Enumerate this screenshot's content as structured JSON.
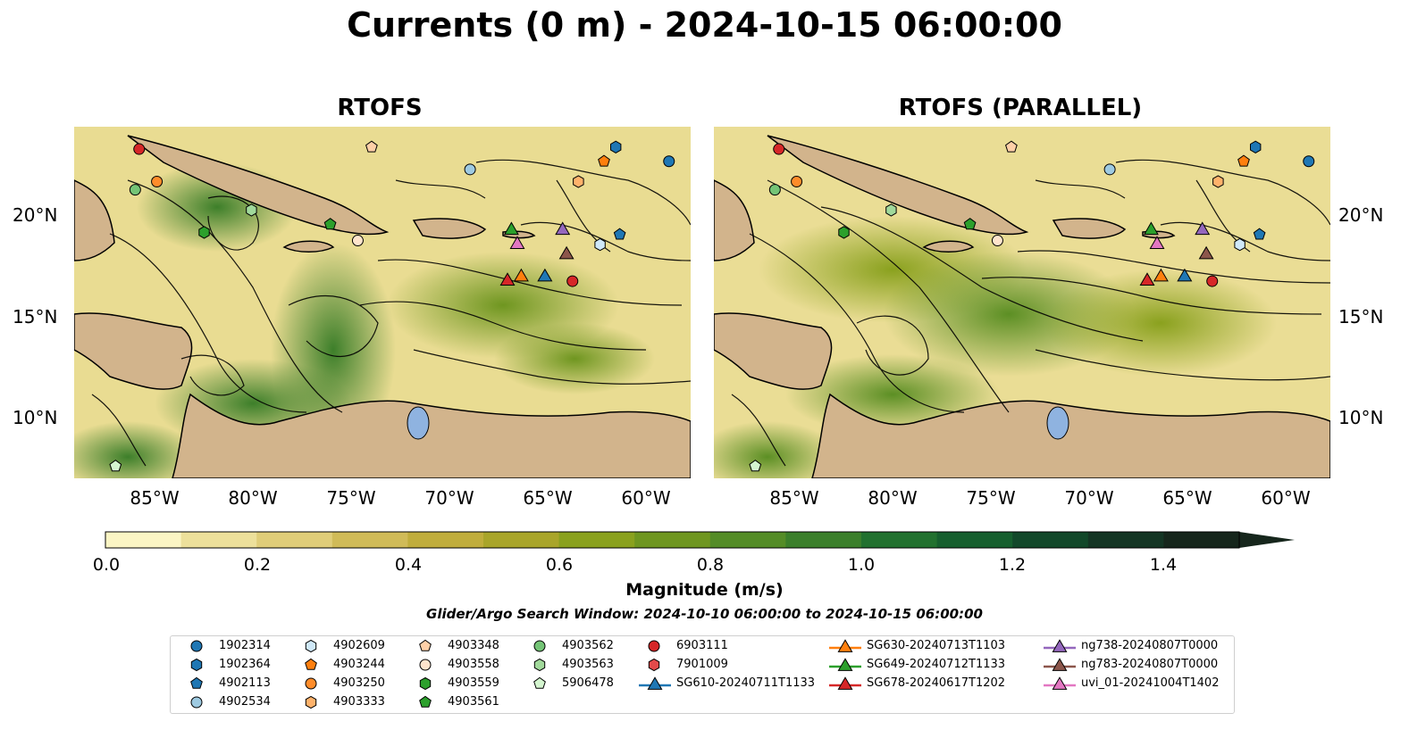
{
  "title": "Currents (0 m) - 2024-10-15 06:00:00",
  "panels": [
    {
      "title": "RTOFS"
    },
    {
      "title": "RTOFS (PARALLEL)"
    }
  ],
  "axes": {
    "lat_ticks": [
      "20°N",
      "15°N",
      "10°N"
    ],
    "lon_ticks": [
      "85°W",
      "80°W",
      "75°W",
      "70°W",
      "65°W",
      "60°W"
    ]
  },
  "colorbar": {
    "label": "Magnitude (m/s)",
    "ticks": [
      "0.0",
      "0.2",
      "0.4",
      "0.6",
      "0.8",
      "1.0",
      "1.2",
      "1.4"
    ],
    "range": [
      0,
      1.5
    ],
    "colors": [
      "#fbf5c4",
      "#ede09b",
      "#e0cd79",
      "#d0bb58",
      "#c0ad3c",
      "#a9a52a",
      "#8aa11e",
      "#6f9620",
      "#548c27",
      "#3b7f2b",
      "#22712f",
      "#165f2e",
      "#12482a",
      "#143524",
      "#16261c"
    ]
  },
  "search_window": "Glider/Argo Search Window: 2024-10-10 06:00:00 to 2024-10-15 06:00:00",
  "land_color": "#d2b48c",
  "legend": [
    {
      "label": "1902314",
      "marker": "circle",
      "color": "#1f77b4"
    },
    {
      "label": "1902364",
      "marker": "hexagon",
      "color": "#1f77b4"
    },
    {
      "label": "4902113",
      "marker": "pentagon",
      "color": "#1f77b4"
    },
    {
      "label": "4902534",
      "marker": "circle",
      "color": "#9ecae1"
    },
    {
      "label": "4902609",
      "marker": "hexagon",
      "color": "#cfe8f8"
    },
    {
      "label": "4903244",
      "marker": "pentagon",
      "color": "#ff7f0e"
    },
    {
      "label": "4903250",
      "marker": "circle",
      "color": "#ff8c2a"
    },
    {
      "label": "4903333",
      "marker": "hexagon",
      "color": "#ffb26b"
    },
    {
      "label": "4903348",
      "marker": "pentagon",
      "color": "#ffd0a8"
    },
    {
      "label": "4903558",
      "marker": "circle",
      "color": "#ffe4cc"
    },
    {
      "label": "4903559",
      "marker": "hexagon",
      "color": "#2ca02c"
    },
    {
      "label": "4903561",
      "marker": "pentagon",
      "color": "#2ca02c"
    },
    {
      "label": "4903562",
      "marker": "circle",
      "color": "#74c476"
    },
    {
      "label": "4903563",
      "marker": "hexagon",
      "color": "#a1d99b"
    },
    {
      "label": "5906478",
      "marker": "pentagon",
      "color": "#d4f5cf"
    },
    {
      "label": "6903111",
      "marker": "circle",
      "color": "#d62728"
    },
    {
      "label": "7901009",
      "marker": "hexagon",
      "color": "#e34a4a"
    },
    {
      "label": "SG610-20240711T1133",
      "marker": "triangle-line",
      "color": "#1f77b4"
    },
    {
      "label": "SG630-20240713T1103",
      "marker": "triangle-line",
      "color": "#ff7f0e"
    },
    {
      "label": "SG649-20240712T1133",
      "marker": "triangle-line",
      "color": "#2ca02c"
    },
    {
      "label": "SG678-20240617T1202",
      "marker": "triangle-line",
      "color": "#d62728"
    },
    {
      "label": "ng738-20240807T0000",
      "marker": "triangle-line",
      "color": "#9467bd"
    },
    {
      "label": "ng783-20240807T0000",
      "marker": "triangle-line",
      "color": "#8c564b"
    },
    {
      "label": "uvi_01-20241004T1402",
      "marker": "triangle-line",
      "color": "#e377c2"
    }
  ],
  "observations": [
    {
      "id": "6903111",
      "lon": -85.9,
      "lat": 23.2
    },
    {
      "id": "4903562",
      "lon": -86.1,
      "lat": 21.2
    },
    {
      "id": "4903250",
      "lon": -85.0,
      "lat": 21.6
    },
    {
      "id": "4903563",
      "lon": -80.2,
      "lat": 20.2
    },
    {
      "id": "4903559",
      "lon": -82.6,
      "lat": 19.1
    },
    {
      "id": "4903561",
      "lon": -76.2,
      "lat": 19.5
    },
    {
      "id": "4903558",
      "lon": -74.8,
      "lat": 18.7
    },
    {
      "id": "4903348",
      "lon": -74.1,
      "lat": 23.3
    },
    {
      "id": "4902534",
      "lon": -69.1,
      "lat": 22.2
    },
    {
      "id": "4903244",
      "lon": -62.3,
      "lat": 22.6
    },
    {
      "id": "1902364",
      "lon": -61.7,
      "lat": 23.3
    },
    {
      "id": "1902314",
      "lon": -59.0,
      "lat": 22.6
    },
    {
      "id": "4903333",
      "lon": -63.6,
      "lat": 21.6
    },
    {
      "id": "4902609",
      "lon": -62.5,
      "lat": 18.5
    },
    {
      "id": "4902113",
      "lon": -61.5,
      "lat": 19.0
    },
    {
      "id": "5906478",
      "lon": -87.1,
      "lat": 7.6
    },
    {
      "id": "SG649-20240712T1133",
      "lon": -67.0,
      "lat": 19.2
    },
    {
      "id": "uvi_01-20241004T1402",
      "lon": -66.7,
      "lat": 18.5
    },
    {
      "id": "ng738-20240807T0000",
      "lon": -64.4,
      "lat": 19.2
    },
    {
      "id": "ng783-20240807T0000",
      "lon": -64.2,
      "lat": 18.0
    },
    {
      "id": "SG678-20240617T1202",
      "lon": -67.2,
      "lat": 16.7
    },
    {
      "id": "SG630-20240713T1103",
      "lon": -66.5,
      "lat": 16.9
    },
    {
      "id": "SG610-20240711T1133",
      "lon": -65.3,
      "lat": 16.9
    },
    {
      "id": "6903111",
      "lon": -63.9,
      "lat": 16.7
    }
  ]
}
